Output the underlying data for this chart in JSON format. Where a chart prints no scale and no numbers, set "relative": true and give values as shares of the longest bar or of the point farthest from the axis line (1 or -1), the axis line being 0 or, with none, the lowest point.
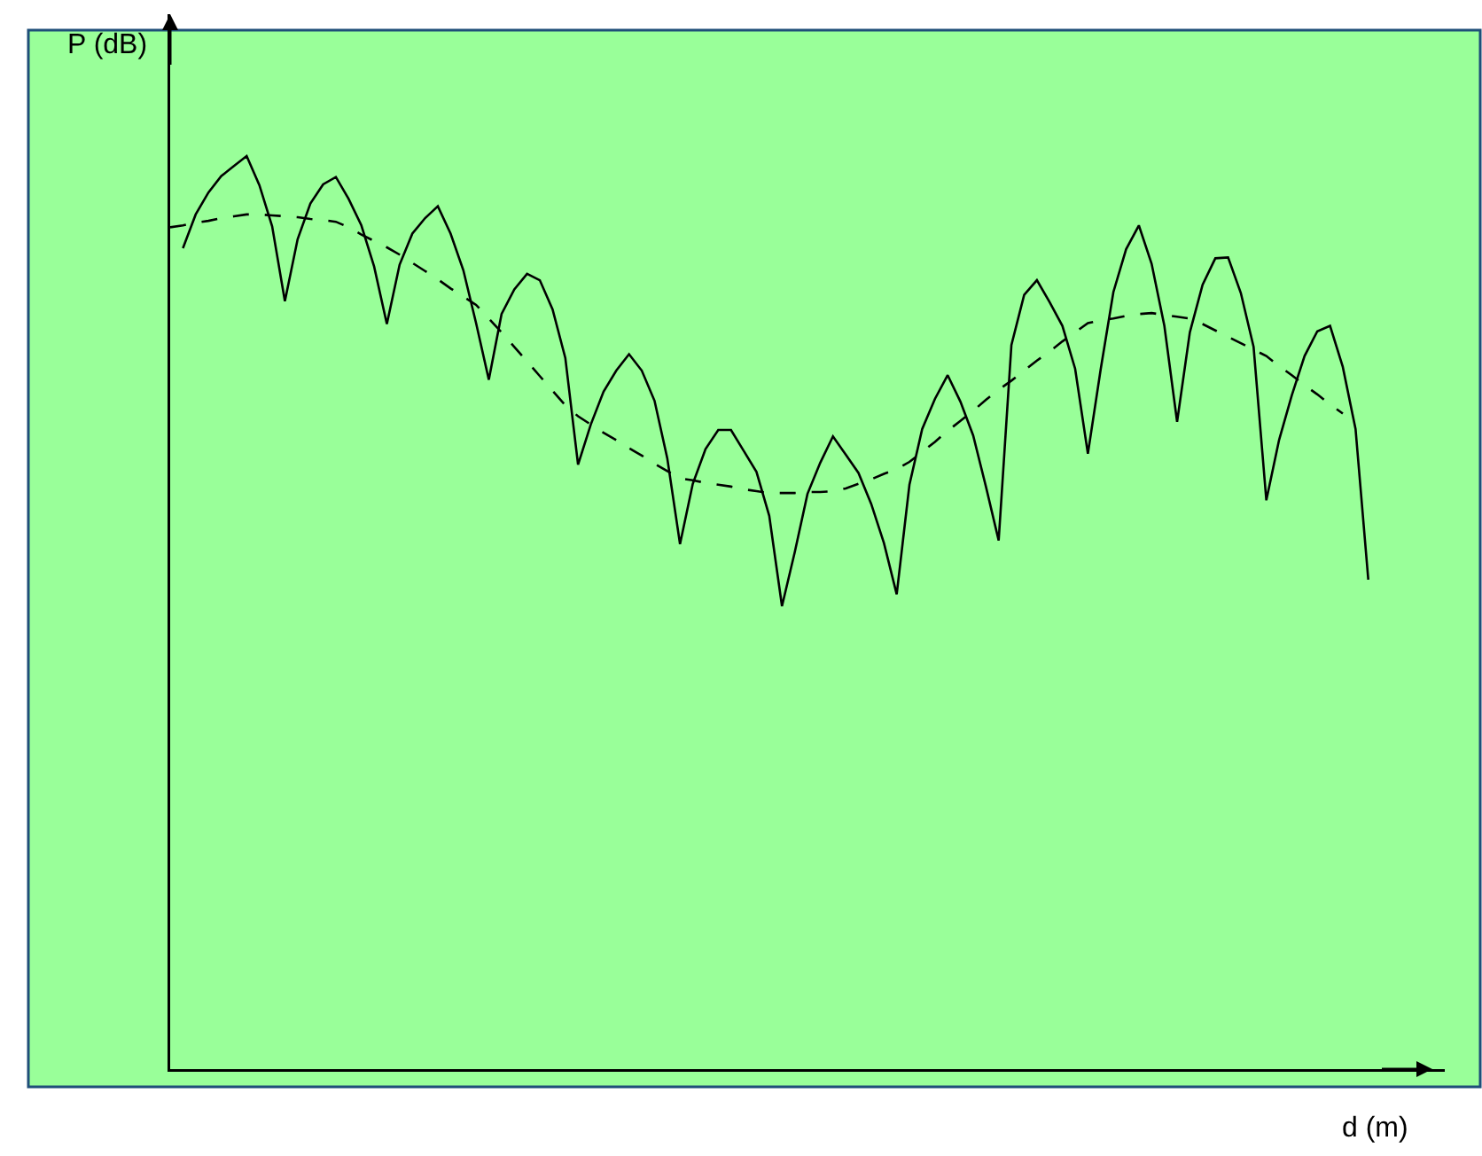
{
  "chart_data": {
    "type": "line",
    "xlabel": "d (m)",
    "ylabel": "P (dB)",
    "relative": true,
    "marker": "none",
    "categories": [
      null,
      null,
      null,
      null,
      null,
      null,
      null,
      null,
      null,
      null,
      null,
      null,
      null,
      null,
      null,
      null,
      null,
      null,
      null,
      null,
      null,
      null,
      null,
      null,
      null,
      null,
      null,
      null,
      null,
      null,
      null,
      null,
      null,
      null,
      null,
      null,
      null,
      null,
      null,
      null,
      null,
      null,
      null,
      null,
      null,
      null,
      null,
      null,
      null,
      null,
      null,
      null,
      null,
      null,
      null,
      null,
      null,
      null,
      null,
      null,
      null,
      null,
      null,
      null,
      null,
      null,
      null,
      null,
      null,
      null,
      null,
      null,
      null,
      null,
      null,
      null,
      null,
      null,
      null,
      null,
      null,
      null,
      null,
      null,
      null,
      null,
      null,
      null,
      null,
      null,
      null,
      null,
      null,
      null,
      null
    ],
    "series": [
      {
        "color": "#000000",
        "line_style": "solid",
        "values": [
          null,
          0.899,
          0.936,
          0.96,
          0.978,
          0.989,
          1.0,
          0.968,
          0.923,
          0.841,
          0.909,
          0.948,
          0.969,
          0.977,
          0.953,
          0.924,
          0.879,
          0.816,
          0.881,
          0.915,
          0.932,
          0.945,
          0.915,
          0.875,
          0.817,
          0.755,
          0.827,
          0.854,
          0.871,
          0.864,
          0.832,
          0.779,
          0.662,
          0.706,
          0.742,
          0.765,
          0.783,
          0.765,
          0.732,
          0.669,
          0.575,
          0.641,
          0.679,
          0.7,
          0.7,
          0.677,
          0.654,
          0.606,
          0.507,
          0.566,
          0.63,
          0.664,
          0.693,
          0.673,
          0.653,
          0.619,
          0.576,
          0.52,
          0.64,
          0.701,
          0.734,
          0.76,
          0.731,
          0.694,
          0.638,
          0.579,
          0.793,
          0.848,
          0.864,
          0.84,
          0.814,
          0.767,
          0.674,
          0.766,
          0.851,
          0.898,
          0.924,
          0.882,
          0.814,
          0.709,
          0.807,
          0.859,
          0.888,
          0.889,
          0.85,
          0.791,
          0.623,
          0.689,
          0.738,
          0.781,
          0.808,
          0.814,
          0.769,
          0.701,
          0.536
        ]
      },
      {
        "color": "#000000",
        "line_style": "dashed",
        "values": [
          0.922,
          0.924,
          0.927,
          0.929,
          0.932,
          0.934,
          0.936,
          0.936,
          0.935,
          0.934,
          0.933,
          0.931,
          0.93,
          0.928,
          0.922,
          0.914,
          0.907,
          0.9,
          0.892,
          0.883,
          0.874,
          0.865,
          0.855,
          0.846,
          0.837,
          0.822,
          0.807,
          0.791,
          0.775,
          0.759,
          0.743,
          0.727,
          0.715,
          0.706,
          0.697,
          0.689,
          0.68,
          0.672,
          0.663,
          0.655,
          0.647,
          0.645,
          0.642,
          0.64,
          0.638,
          0.635,
          0.633,
          0.631,
          0.631,
          0.631,
          0.632,
          0.632,
          0.633,
          0.636,
          0.641,
          0.646,
          0.652,
          0.657,
          0.665,
          0.676,
          0.687,
          0.699,
          0.71,
          0.721,
          0.733,
          0.744,
          0.754,
          0.765,
          0.776,
          0.786,
          0.797,
          0.807,
          0.817,
          0.82,
          0.822,
          0.825,
          0.827,
          0.828,
          0.826,
          0.824,
          0.822,
          0.816,
          0.809,
          0.802,
          0.795,
          0.788,
          0.781,
          0.77,
          0.76,
          0.749,
          0.739,
          0.728,
          0.718,
          null,
          null
        ]
      }
    ]
  }
}
